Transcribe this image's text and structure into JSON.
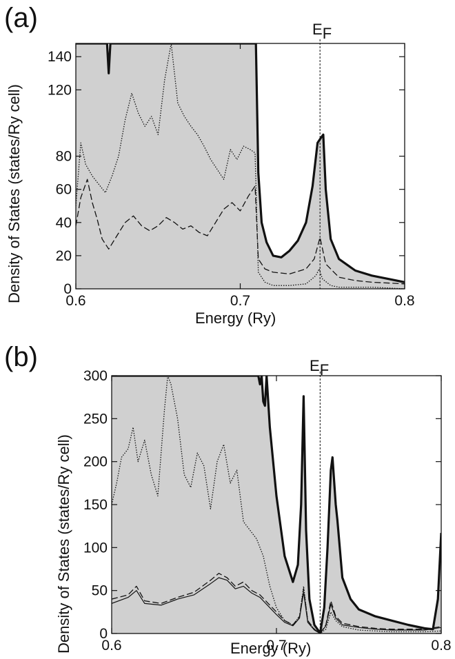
{
  "chart_data": [
    {
      "panel": "(a)",
      "type": "line",
      "fermi_label": "E",
      "fermi_sub": "F",
      "fermi_energy": 0.7485,
      "xlabel": "Energy (Ry)",
      "ylabel": "Density of States (states/Ry cell)",
      "xlim": [
        0.6,
        0.8
      ],
      "x_ticks": [
        "0.6",
        "0.7",
        "0.8"
      ],
      "y_ticks": [
        {
          "label": "0",
          "value": 0
        },
        {
          "label": "20",
          "value": 20
        },
        {
          "label": "40",
          "value": 40
        },
        {
          "label": "60",
          "value": 60
        },
        {
          "label": "80",
          "value": 80
        },
        {
          "label": "120",
          "value": 120
        },
        {
          "label": "140",
          "value": 140
        }
      ],
      "ylim": [
        0,
        148
      ],
      "grid": false,
      "colors": {
        "fill": "#d0d0d0",
        "line": "#111111"
      },
      "series": [
        {
          "style": "solid-thick-filled",
          "x": [
            0.6,
            0.619,
            0.62,
            0.621,
            0.622,
            0.7095,
            0.711,
            0.713,
            0.716,
            0.72,
            0.725,
            0.73,
            0.735,
            0.74,
            0.744,
            0.747,
            0.749,
            0.7505,
            0.752,
            0.755,
            0.76,
            0.77,
            0.78,
            0.79,
            0.8
          ],
          "y": [
            148,
            148,
            130,
            148,
            148,
            148,
            70,
            40,
            28,
            20,
            19,
            23,
            29,
            40,
            62,
            88,
            91,
            93,
            60,
            30,
            18,
            11,
            8,
            6,
            4
          ]
        },
        {
          "style": "dotted",
          "x": [
            0.6,
            0.603,
            0.606,
            0.61,
            0.614,
            0.618,
            0.622,
            0.626,
            0.63,
            0.634,
            0.638,
            0.642,
            0.646,
            0.65,
            0.654,
            0.658,
            0.662,
            0.666,
            0.67,
            0.674,
            0.678,
            0.682,
            0.686,
            0.69,
            0.694,
            0.698,
            0.702,
            0.706,
            0.709,
            0.711,
            0.715,
            0.72,
            0.73,
            0.74,
            0.746,
            0.748,
            0.75,
            0.755,
            0.76,
            0.77,
            0.78,
            0.8
          ],
          "y": [
            50,
            88,
            75,
            68,
            63,
            58,
            68,
            80,
            102,
            118,
            106,
            98,
            104,
            93,
            126,
            148,
            112,
            104,
            98,
            93,
            86,
            78,
            72,
            66,
            84,
            78,
            86,
            84,
            82,
            10,
            4,
            2,
            2,
            3,
            8,
            12,
            6,
            2,
            1,
            1,
            1,
            0
          ]
        },
        {
          "style": "dashed",
          "x": [
            0.6,
            0.603,
            0.607,
            0.61,
            0.613,
            0.616,
            0.62,
            0.625,
            0.63,
            0.635,
            0.64,
            0.645,
            0.65,
            0.655,
            0.66,
            0.665,
            0.67,
            0.675,
            0.68,
            0.685,
            0.69,
            0.695,
            0.7,
            0.705,
            0.709,
            0.711,
            0.715,
            0.72,
            0.73,
            0.74,
            0.745,
            0.7485,
            0.752,
            0.76,
            0.77,
            0.78,
            0.8
          ],
          "y": [
            38,
            55,
            66,
            52,
            42,
            30,
            24,
            32,
            40,
            44,
            38,
            35,
            38,
            43,
            40,
            36,
            38,
            34,
            32,
            40,
            48,
            52,
            47,
            56,
            62,
            18,
            12,
            10,
            9,
            12,
            18,
            31,
            15,
            7,
            5,
            4,
            3
          ]
        }
      ]
    },
    {
      "panel": "(b)",
      "type": "line",
      "fermi_label": "E",
      "fermi_sub": "F",
      "fermi_energy": 0.7265,
      "xlabel": "Energy (Ry)",
      "ylabel": "Density of States (states/Ry cell)",
      "xlim": [
        0.6,
        0.8
      ],
      "x_ticks": [
        "0.6",
        "0.7",
        "0.8"
      ],
      "y_ticks": [
        {
          "label": "0",
          "value": 0
        },
        {
          "label": "50",
          "value": 50
        },
        {
          "label": "100",
          "value": 100
        },
        {
          "label": "150",
          "value": 150
        },
        {
          "label": "200",
          "value": 200
        },
        {
          "label": "250",
          "value": 250
        },
        {
          "label": "300",
          "value": 300
        }
      ],
      "ylim": [
        0,
        300
      ],
      "grid": false,
      "colors": {
        "fill": "#d0d0d0",
        "line": "#111111"
      },
      "series": [
        {
          "style": "solid-thick-filled",
          "x": [
            0.6,
            0.689,
            0.69,
            0.691,
            0.692,
            0.693,
            0.694,
            0.696,
            0.7,
            0.705,
            0.71,
            0.713,
            0.715,
            0.7165,
            0.718,
            0.72,
            0.723,
            0.726,
            0.7265,
            0.729,
            0.731,
            0.733,
            0.734,
            0.736,
            0.737,
            0.74,
            0.745,
            0.75,
            0.76,
            0.77,
            0.78,
            0.79,
            0.795,
            0.798,
            0.8
          ],
          "y": [
            300,
            300,
            290,
            300,
            270,
            265,
            300,
            240,
            160,
            90,
            60,
            80,
            150,
            276,
            120,
            40,
            10,
            2,
            0,
            30,
            100,
            190,
            205,
            150,
            132,
            65,
            40,
            28,
            20,
            15,
            10,
            6,
            5,
            40,
            117
          ]
        },
        {
          "style": "dotted",
          "x": [
            0.6,
            0.603,
            0.606,
            0.61,
            0.613,
            0.616,
            0.62,
            0.624,
            0.628,
            0.632,
            0.634,
            0.636,
            0.64,
            0.644,
            0.648,
            0.652,
            0.656,
            0.66,
            0.664,
            0.668,
            0.672,
            0.676,
            0.68,
            0.684,
            0.688,
            0.692,
            0.696,
            0.7,
            0.705,
            0.71,
            0.714,
            0.7165,
            0.719,
            0.723,
            0.7265,
            0.73,
            0.733,
            0.736,
            0.74,
            0.75,
            0.76,
            0.77,
            0.78,
            0.79,
            0.8
          ],
          "y": [
            150,
            175,
            205,
            215,
            240,
            200,
            225,
            185,
            160,
            260,
            300,
            290,
            250,
            185,
            170,
            210,
            195,
            145,
            200,
            220,
            175,
            190,
            130,
            120,
            110,
            90,
            55,
            30,
            15,
            10,
            20,
            55,
            15,
            5,
            0,
            5,
            25,
            15,
            8,
            4,
            3,
            2,
            2,
            2,
            3
          ]
        },
        {
          "style": "dashed",
          "x": [
            0.6,
            0.61,
            0.615,
            0.62,
            0.63,
            0.64,
            0.65,
            0.66,
            0.665,
            0.67,
            0.675,
            0.68,
            0.685,
            0.69,
            0.695,
            0.7,
            0.705,
            0.71,
            0.714,
            0.7165,
            0.719,
            0.723,
            0.7265,
            0.73,
            0.733,
            0.736,
            0.74,
            0.75,
            0.76,
            0.77,
            0.78,
            0.79,
            0.8
          ],
          "y": [
            40,
            45,
            55,
            38,
            35,
            42,
            48,
            62,
            70,
            65,
            55,
            60,
            50,
            45,
            35,
            25,
            15,
            10,
            20,
            52,
            15,
            5,
            0,
            10,
            38,
            20,
            12,
            8,
            6,
            5,
            5,
            5,
            8
          ]
        },
        {
          "style": "solid-thin",
          "x": [
            0.6,
            0.61,
            0.615,
            0.62,
            0.63,
            0.64,
            0.65,
            0.66,
            0.665,
            0.67,
            0.675,
            0.68,
            0.685,
            0.69,
            0.695,
            0.7,
            0.705,
            0.71,
            0.714,
            0.7165,
            0.719,
            0.723,
            0.7265,
            0.73,
            0.733,
            0.736,
            0.74,
            0.75,
            0.76,
            0.77,
            0.78,
            0.79,
            0.8
          ],
          "y": [
            35,
            42,
            50,
            35,
            33,
            40,
            45,
            58,
            65,
            62,
            52,
            55,
            47,
            42,
            32,
            22,
            13,
            9,
            18,
            48,
            13,
            4,
            0,
            9,
            34,
            18,
            10,
            7,
            5,
            4,
            4,
            4,
            7
          ]
        }
      ]
    }
  ]
}
